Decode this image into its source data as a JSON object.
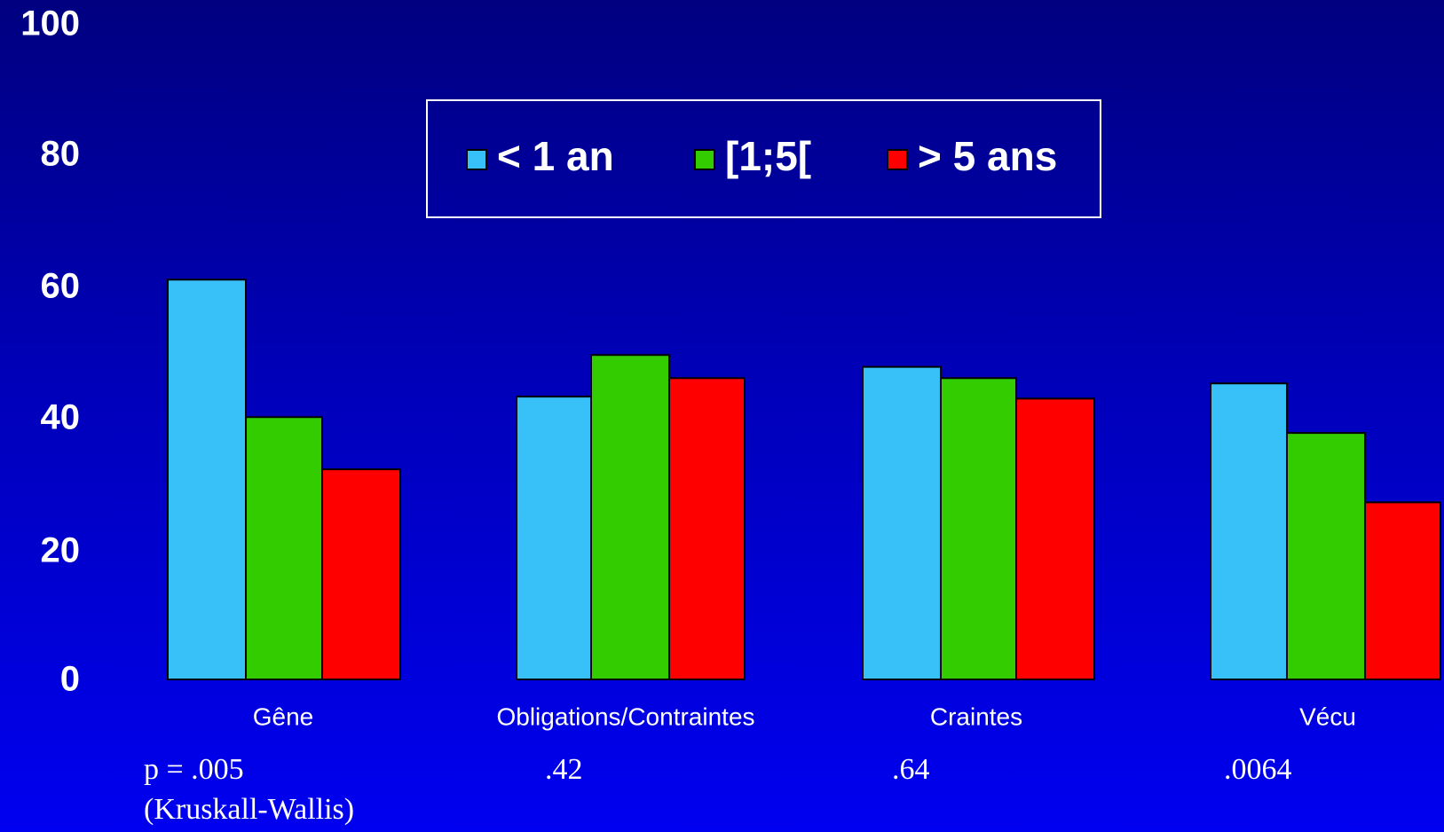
{
  "chart_data": {
    "type": "bar",
    "categories": [
      "Gêne",
      "Obligations/Contraintes",
      "Craintes",
      "Vécu"
    ],
    "series": [
      {
        "name": "< 1 an",
        "color": "#38c0f8",
        "values": [
          60.5,
          42.8,
          47.3,
          44.8
        ]
      },
      {
        "name": "[1;5[",
        "color": "#33cc00",
        "values": [
          39.7,
          49.1,
          45.6,
          37.3
        ]
      },
      {
        "name": "> 5 ans",
        "color": "#ff0000",
        "values": [
          31.8,
          45.6,
          42.5,
          26.8
        ]
      }
    ],
    "ylim": [
      0,
      100
    ],
    "yticks": [
      "0",
      "20",
      "40",
      "60",
      "80",
      "100"
    ],
    "ytick_values": [
      0,
      20,
      40,
      60,
      80,
      100
    ],
    "pvalues": [
      "p = .005",
      ".42",
      ".64",
      ".0064"
    ],
    "pvalue_note": "(Kruskall-Wallis)",
    "legend_position": "top-center",
    "grid": false
  }
}
